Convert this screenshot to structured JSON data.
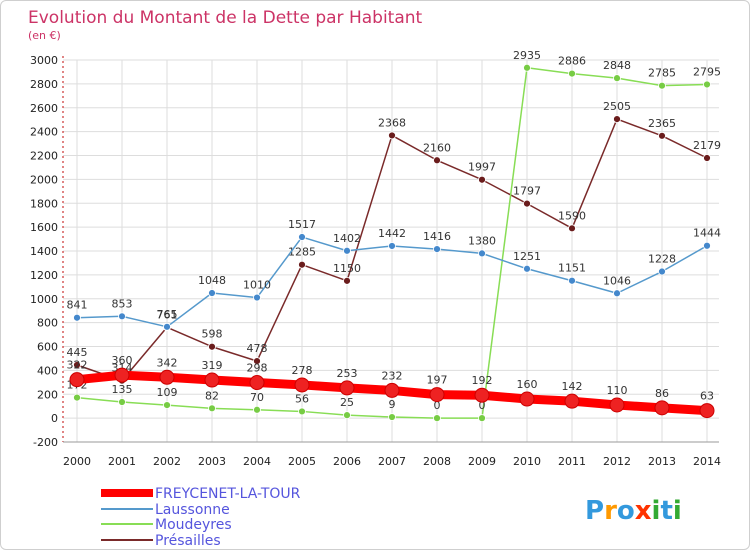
{
  "chart_data": {
    "type": "line",
    "title": "Evolution du Montant de la Dette par Habitant",
    "subtitle": "(en €)",
    "categories": [
      "2000",
      "2001",
      "2002",
      "2003",
      "2004",
      "2005",
      "2006",
      "2007",
      "2008",
      "2009",
      "2010",
      "2011",
      "2012",
      "2013",
      "2014"
    ],
    "ylim": [
      -200,
      3000
    ],
    "yticks": [
      -200,
      0,
      200,
      400,
      600,
      800,
      1000,
      1200,
      1400,
      1600,
      1800,
      2000,
      2200,
      2400,
      2600,
      2800,
      3000
    ],
    "grid": true,
    "legend_position": "bottom-left",
    "series": [
      {
        "name": "FREYCENET-LA-TOUR",
        "color": "#ff0000",
        "marker": "#ee2222",
        "values": [
          322,
          360,
          342,
          319,
          298,
          278,
          253,
          232,
          197,
          192,
          160,
          142,
          110,
          86,
          63
        ]
      },
      {
        "name": "Laussonne",
        "color": "#5599cc",
        "marker": "#4488cc",
        "values": [
          841,
          853,
          765,
          1048,
          1010,
          1517,
          1402,
          1442,
          1416,
          1380,
          1251,
          1151,
          1046,
          1228,
          1444
        ]
      },
      {
        "name": "Moudeyres",
        "color": "#88dd55",
        "marker": "#77cc44",
        "values": [
          172,
          135,
          109,
          82,
          70,
          56,
          25,
          9,
          0,
          0,
          2935,
          2886,
          2848,
          2785,
          2795
        ]
      },
      {
        "name": "Présailles",
        "color": "#7a2a2a",
        "marker": "#6a1c1c",
        "values": [
          445,
          314,
          761,
          598,
          478,
          1285,
          1150,
          2368,
          2160,
          1997,
          1797,
          1590,
          2505,
          2365,
          2179
        ]
      }
    ]
  },
  "brand": {
    "name": "Proxiti"
  }
}
